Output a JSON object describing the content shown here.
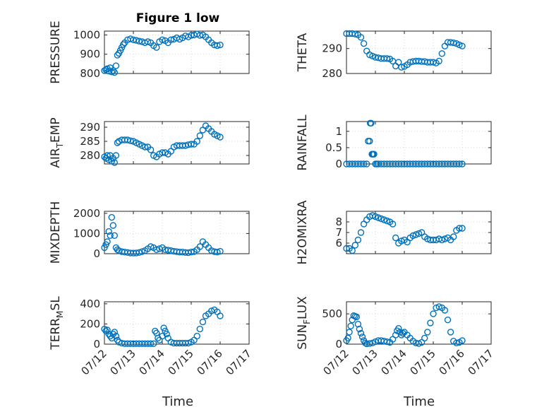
{
  "figure": {
    "title": "Figure 1 low",
    "xlabel": "Time",
    "marker_color": "#0072BD",
    "grid_color": "#d9d9d9",
    "axis_color": "#262626"
  },
  "chart_data": [
    {
      "type": "scatter",
      "ylabel": "PRESSURE",
      "ylim": [
        800,
        1020
      ],
      "yticks": [
        "800",
        "900",
        "1000"
      ],
      "ytick_values": [
        800,
        900,
        1000
      ],
      "xlim": [
        0,
        5
      ],
      "xticks": [
        "07/12",
        "07/13",
        "07/14",
        "07/15",
        "07/16",
        "07/17"
      ],
      "grid": true,
      "series": [
        {
          "x": [
            0.0,
            0.05,
            0.1,
            0.15,
            0.2,
            0.25,
            0.3,
            0.35,
            0.4,
            0.45,
            0.5,
            0.55,
            0.6,
            0.65,
            0.7,
            0.8,
            0.9,
            1.0,
            1.1,
            1.2,
            1.3,
            1.4,
            1.5,
            1.6,
            1.7,
            1.8,
            1.9,
            2.0,
            2.1,
            2.2,
            2.3,
            2.4,
            2.5,
            2.6,
            2.7,
            2.8,
            2.9,
            3.0,
            3.1,
            3.2,
            3.3,
            3.4,
            3.5,
            3.6,
            3.7,
            3.8,
            3.9,
            4.0
          ],
          "y": [
            815,
            820,
            825,
            812,
            830,
            808,
            815,
            805,
            840,
            895,
            905,
            920,
            935,
            950,
            960,
            975,
            980,
            975,
            972,
            968,
            965,
            960,
            965,
            960,
            945,
            935,
            965,
            975,
            970,
            960,
            975,
            978,
            985,
            978,
            985,
            995,
            990,
            998,
            1000,
            1005,
            998,
            1000,
            990,
            975,
            960,
            948,
            945,
            948
          ]
        }
      ]
    },
    {
      "type": "scatter",
      "ylabel": "THETA",
      "ylim": [
        280,
        297
      ],
      "yticks": [
        "280",
        "290"
      ],
      "ytick_values": [
        280,
        290
      ],
      "xlim": [
        0,
        5
      ],
      "xticks": [
        "07/12",
        "07/13",
        "07/14",
        "07/15",
        "07/16",
        "07/17"
      ],
      "grid": true,
      "series": [
        {
          "x": [
            0.0,
            0.1,
            0.2,
            0.3,
            0.4,
            0.5,
            0.6,
            0.7,
            0.8,
            0.9,
            1.0,
            1.1,
            1.2,
            1.3,
            1.4,
            1.5,
            1.6,
            1.7,
            1.8,
            1.9,
            2.0,
            2.1,
            2.2,
            2.3,
            2.4,
            2.5,
            2.6,
            2.7,
            2.8,
            2.9,
            3.0,
            3.1,
            3.2,
            3.3,
            3.4,
            3.5,
            3.6,
            3.7,
            3.8,
            3.9,
            4.0
          ],
          "y": [
            296,
            296,
            296,
            295.8,
            295.5,
            294.5,
            292,
            289,
            287.5,
            287,
            286.5,
            286.3,
            286,
            286,
            286,
            285.8,
            285,
            283,
            284.5,
            282.5,
            282.8,
            283.5,
            284.5,
            284.8,
            285,
            285,
            284.8,
            284.8,
            284.5,
            284.5,
            284.5,
            284.2,
            285,
            288,
            291,
            292.5,
            292.5,
            292.3,
            292,
            291.5,
            291
          ]
        }
      ]
    },
    {
      "type": "scatter",
      "ylabel": "AIR_TEMP",
      "ylim": [
        277,
        292
      ],
      "yticks": [
        "280",
        "285",
        "290"
      ],
      "ytick_values": [
        280,
        285,
        290
      ],
      "xlim": [
        0,
        5
      ],
      "xticks": [
        "07/12",
        "07/13",
        "07/14",
        "07/15",
        "07/16",
        "07/17"
      ],
      "grid": true,
      "series": [
        {
          "x": [
            0.0,
            0.05,
            0.1,
            0.15,
            0.2,
            0.25,
            0.3,
            0.35,
            0.4,
            0.45,
            0.5,
            0.6,
            0.7,
            0.8,
            0.9,
            1.0,
            1.1,
            1.2,
            1.3,
            1.4,
            1.5,
            1.6,
            1.7,
            1.8,
            1.9,
            2.0,
            2.1,
            2.2,
            2.3,
            2.4,
            2.5,
            2.6,
            2.7,
            2.8,
            2.9,
            3.0,
            3.1,
            3.2,
            3.3,
            3.4,
            3.5,
            3.6,
            3.7,
            3.8,
            3.9,
            4.0
          ],
          "y": [
            279.5,
            279,
            280,
            278.5,
            280,
            278,
            279,
            277.5,
            280,
            284.5,
            285,
            285.5,
            285.5,
            285.5,
            285.2,
            285,
            284.5,
            284,
            283.5,
            283,
            283,
            282,
            280,
            279.5,
            280.5,
            281,
            281,
            280.5,
            281.5,
            283,
            283.5,
            283.5,
            283.5,
            283.5,
            283.8,
            284,
            284,
            285,
            287,
            289,
            290.5,
            289.5,
            288.5,
            287.5,
            287,
            286.5
          ]
        }
      ]
    },
    {
      "type": "scatter",
      "ylabel": "RAINFALL",
      "ylim": [
        0,
        1.3
      ],
      "yticks": [
        "0",
        "0.5",
        "1"
      ],
      "ytick_values": [
        0,
        0.5,
        1
      ],
      "xlim": [
        0,
        5
      ],
      "xticks": [
        "07/12",
        "07/13",
        "07/14",
        "07/15",
        "07/16",
        "07/17"
      ],
      "grid": true,
      "series": [
        {
          "x": [
            0.0,
            0.1,
            0.2,
            0.3,
            0.4,
            0.5,
            0.6,
            0.7,
            0.75,
            0.8,
            0.82,
            0.85,
            0.88,
            0.9,
            0.92,
            0.95,
            1.0,
            1.05,
            1.1,
            1.2,
            1.3,
            1.4,
            1.5,
            1.6,
            1.7,
            1.8,
            1.9,
            2.0,
            2.1,
            2.2,
            2.3,
            2.4,
            2.5,
            2.6,
            2.7,
            2.8,
            2.9,
            3.0,
            3.1,
            3.2,
            3.3,
            3.4,
            3.5,
            3.6,
            3.7,
            3.8,
            3.9,
            4.0
          ],
          "y": [
            0,
            0,
            0,
            0,
            0,
            0,
            0,
            0,
            0.7,
            0.7,
            1.25,
            1.25,
            0.3,
            0.3,
            0.3,
            0.3,
            0,
            0,
            0,
            0,
            0,
            0,
            0,
            0,
            0,
            0,
            0,
            0,
            0,
            0,
            0,
            0,
            0,
            0,
            0,
            0,
            0,
            0,
            0,
            0,
            0,
            0,
            0,
            0,
            0,
            0,
            0,
            0
          ]
        }
      ]
    },
    {
      "type": "scatter",
      "ylabel": "MIXDEPTH",
      "ylim": [
        0,
        2100
      ],
      "yticks": [
        "0",
        "1000",
        "2000"
      ],
      "ytick_values": [
        0,
        1000,
        2000
      ],
      "xlim": [
        0,
        5
      ],
      "xticks": [
        "07/12",
        "07/13",
        "07/14",
        "07/15",
        "07/16",
        "07/17"
      ],
      "grid": true,
      "series": [
        {
          "x": [
            0.0,
            0.05,
            0.1,
            0.15,
            0.2,
            0.25,
            0.3,
            0.35,
            0.4,
            0.45,
            0.5,
            0.6,
            0.7,
            0.8,
            0.9,
            1.0,
            1.1,
            1.2,
            1.3,
            1.4,
            1.5,
            1.6,
            1.7,
            1.8,
            1.9,
            2.0,
            2.1,
            2.2,
            2.3,
            2.4,
            2.5,
            2.6,
            2.7,
            2.8,
            2.9,
            3.0,
            3.1,
            3.2,
            3.3,
            3.4,
            3.5,
            3.6,
            3.7,
            3.8,
            3.9,
            4.0
          ],
          "y": [
            300,
            450,
            600,
            1100,
            900,
            1800,
            1400,
            900,
            300,
            200,
            150,
            100,
            80,
            60,
            40,
            30,
            40,
            60,
            100,
            150,
            250,
            350,
            300,
            200,
            250,
            300,
            200,
            180,
            150,
            120,
            100,
            80,
            80,
            60,
            50,
            80,
            100,
            200,
            350,
            600,
            450,
            300,
            150,
            100,
            80,
            120
          ]
        }
      ]
    },
    {
      "type": "scatter",
      "ylabel": "H2OMIXRA",
      "ylim": [
        5,
        9
      ],
      "yticks": [
        "6",
        "7",
        "8"
      ],
      "ytick_values": [
        6,
        7,
        8
      ],
      "xlim": [
        0,
        5
      ],
      "xticks": [
        "07/12",
        "07/13",
        "07/14",
        "07/15",
        "07/16",
        "07/17"
      ],
      "grid": true,
      "series": [
        {
          "x": [
            0.0,
            0.1,
            0.2,
            0.3,
            0.4,
            0.5,
            0.6,
            0.7,
            0.8,
            0.9,
            1.0,
            1.1,
            1.2,
            1.3,
            1.4,
            1.5,
            1.6,
            1.7,
            1.8,
            1.9,
            2.0,
            2.1,
            2.2,
            2.3,
            2.4,
            2.5,
            2.6,
            2.7,
            2.8,
            2.9,
            3.0,
            3.1,
            3.2,
            3.3,
            3.4,
            3.5,
            3.6,
            3.7,
            3.8,
            3.9,
            4.0
          ],
          "y": [
            5.5,
            5.5,
            5.3,
            5.8,
            6.3,
            7.0,
            7.8,
            8.2,
            8.5,
            8.6,
            8.5,
            8.4,
            8.3,
            8.2,
            8.1,
            8.0,
            7.8,
            6.5,
            6.0,
            6.2,
            6.3,
            6.1,
            6.5,
            6.7,
            6.8,
            6.9,
            7.0,
            6.6,
            6.4,
            6.3,
            6.3,
            6.3,
            6.4,
            6.3,
            6.4,
            6.5,
            6.3,
            6.6,
            7.2,
            7.4,
            7.4
          ]
        }
      ]
    },
    {
      "type": "scatter",
      "ylabel": "TERR_MSL",
      "ylim": [
        0,
        420
      ],
      "yticks": [
        "0",
        "200",
        "400"
      ],
      "ytick_values": [
        0,
        200,
        400
      ],
      "xlim": [
        0,
        5
      ],
      "xticks": [
        "07/12",
        "07/13",
        "07/14",
        "07/15",
        "07/16",
        "07/17"
      ],
      "grid": true,
      "series": [
        {
          "x": [
            0.0,
            0.05,
            0.1,
            0.15,
            0.2,
            0.25,
            0.3,
            0.35,
            0.4,
            0.45,
            0.5,
            0.6,
            0.7,
            0.8,
            0.9,
            1.0,
            1.1,
            1.2,
            1.3,
            1.4,
            1.5,
            1.6,
            1.7,
            1.75,
            1.8,
            1.85,
            1.9,
            2.0,
            2.05,
            2.1,
            2.15,
            2.2,
            2.3,
            2.4,
            2.5,
            2.6,
            2.7,
            2.8,
            2.9,
            3.0,
            3.1,
            3.2,
            3.3,
            3.4,
            3.5,
            3.6,
            3.7,
            3.8,
            3.9,
            4.0
          ],
          "y": [
            150,
            130,
            140,
            100,
            80,
            60,
            100,
            120,
            80,
            40,
            20,
            10,
            5,
            5,
            5,
            5,
            5,
            5,
            5,
            5,
            5,
            5,
            5,
            130,
            110,
            60,
            40,
            80,
            160,
            130,
            100,
            60,
            20,
            10,
            10,
            10,
            10,
            10,
            10,
            20,
            40,
            80,
            150,
            220,
            280,
            300,
            330,
            340,
            320,
            280
          ]
        }
      ]
    },
    {
      "type": "scatter",
      "ylabel": "SUN_FLUX",
      "ylim": [
        0,
        700
      ],
      "yticks": [
        "0",
        "500"
      ],
      "ytick_values": [
        0,
        500
      ],
      "xlim": [
        0,
        5
      ],
      "xticks": [
        "07/12",
        "07/13",
        "07/14",
        "07/15",
        "07/16",
        "07/17"
      ],
      "grid": true,
      "series": [
        {
          "x": [
            0.0,
            0.05,
            0.1,
            0.15,
            0.2,
            0.25,
            0.3,
            0.35,
            0.4,
            0.45,
            0.5,
            0.55,
            0.6,
            0.65,
            0.7,
            0.8,
            0.9,
            1.0,
            1.1,
            1.2,
            1.3,
            1.4,
            1.5,
            1.6,
            1.7,
            1.75,
            1.8,
            1.85,
            1.9,
            1.95,
            2.0,
            2.1,
            2.2,
            2.3,
            2.4,
            2.5,
            2.6,
            2.7,
            2.8,
            2.9,
            3.0,
            3.1,
            3.2,
            3.3,
            3.4,
            3.5,
            3.6,
            3.7,
            3.8,
            3.9,
            4.0
          ],
          "y": [
            60,
            100,
            200,
            300,
            400,
            470,
            460,
            450,
            330,
            250,
            180,
            120,
            60,
            20,
            5,
            10,
            20,
            40,
            60,
            60,
            50,
            40,
            30,
            80,
            150,
            220,
            260,
            200,
            150,
            180,
            200,
            150,
            100,
            50,
            20,
            10,
            30,
            100,
            200,
            350,
            500,
            600,
            620,
            600,
            560,
            400,
            200,
            50,
            20,
            30,
            60
          ]
        }
      ]
    }
  ]
}
